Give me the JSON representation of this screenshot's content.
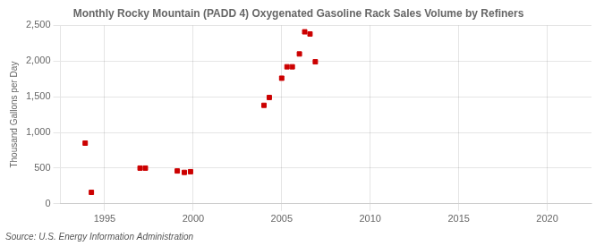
{
  "chart_data": {
    "type": "scatter",
    "title": "Monthly Rocky Mountain (PADD 4) Oxygenated Gasoline Rack Sales Volume by Refiners",
    "y_label": "Thousand Gallons per Day",
    "annotation": "Source: U.S. Energy Information Administration",
    "x": [
      1993.9,
      1994.25,
      1997.0,
      1997.3,
      1999.1,
      1999.5,
      1999.85,
      2004.0,
      2004.3,
      2005.0,
      2005.3,
      2005.6,
      2006.0,
      2006.3,
      2006.6,
      2006.9
    ],
    "values": [
      850,
      160,
      500,
      500,
      460,
      440,
      450,
      1380,
      1490,
      1760,
      1920,
      1920,
      2100,
      2410,
      2380,
      1990
    ],
    "color": "#cc0000",
    "marker": "square",
    "xlim": [
      1992.5,
      2022.5
    ],
    "ylim": [
      0,
      2500
    ],
    "xticks": [
      1995,
      2000,
      2005,
      2010,
      2015,
      2020
    ],
    "yticks": [
      0,
      500,
      {
        "value": 1000,
        "label": "1,000"
      },
      {
        "value": 1500,
        "label": "1,500"
      },
      {
        "value": 2000,
        "label": "2,000"
      },
      {
        "value": 2500,
        "label": "2,500"
      }
    ],
    "grid": true
  }
}
